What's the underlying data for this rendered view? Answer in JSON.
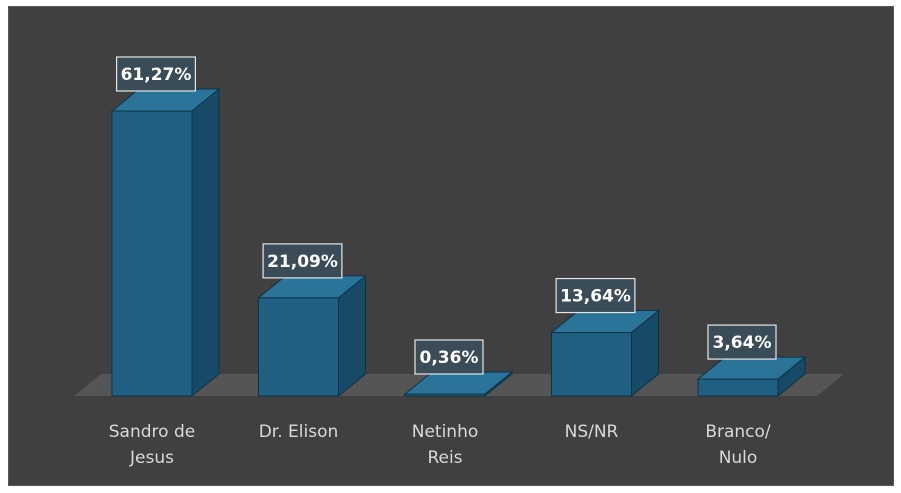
{
  "chart_data": {
    "type": "bar",
    "categories": [
      [
        "Sandro de",
        "Jesus"
      ],
      [
        "Dr. Elison"
      ],
      [
        "Netinho",
        "Reis"
      ],
      [
        "NS/NR"
      ],
      [
        "Branco/",
        "Nulo"
      ]
    ],
    "values": [
      61.27,
      21.09,
      0.36,
      13.64,
      3.64
    ],
    "data_labels": [
      "61,27%",
      "21,09%",
      "0,36%",
      "13,64%",
      "3,64%"
    ],
    "title": "",
    "xlabel": "",
    "ylabel": "",
    "ylim": [
      0,
      61.27
    ],
    "grid": false,
    "legend": "none",
    "colors": {
      "background": "#404040",
      "floor": "#555555",
      "bar_front": "#1f5f82",
      "bar_side": "#174a66",
      "bar_top": "#2a7399",
      "bar_edge": "#0d3347",
      "label_fill": "#3a4c58",
      "label_border": "#e6e6e6",
      "category_text": "#d9d9d9"
    }
  }
}
